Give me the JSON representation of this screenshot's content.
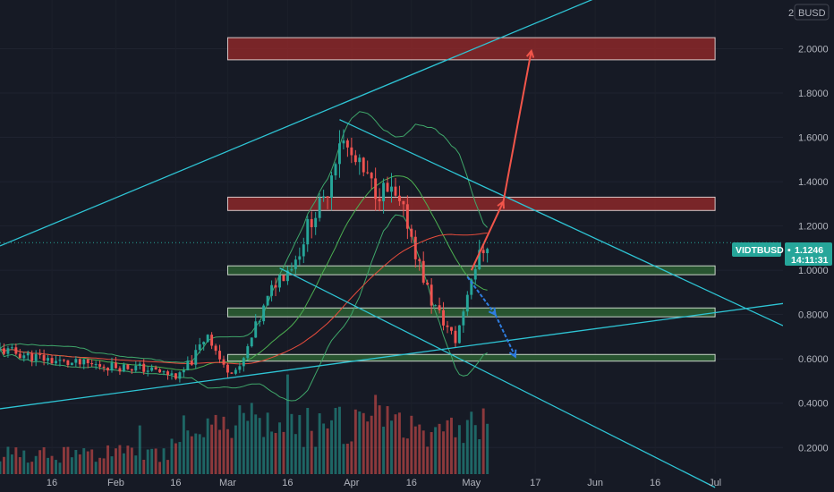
{
  "header": {
    "scale_mode": "2",
    "currency": "BUSD"
  },
  "price_label": {
    "symbol": "VIDTBUSD",
    "price": "1.1246",
    "countdown": "14:11:31"
  },
  "colors": {
    "background": "#161a25",
    "up": "#26a69a",
    "down": "#ef5350",
    "trendline": "#2ec4d4",
    "resistance_zone": "#a02a2a",
    "support_zone": "#2f6b34",
    "arrow_up": "#f2554a",
    "arrow_down": "#2f7de0",
    "bollinger": "#3fa66a",
    "ma_red": "#e74c3c",
    "ma_green": "#4caf50"
  },
  "chart_data": {
    "type": "candlestick",
    "symbol": "VIDTBUSD",
    "price_axis": {
      "ticks": [
        "2.0000",
        "1.8000",
        "1.6000",
        "1.4000",
        "1.2000",
        "1.0000",
        "0.8000",
        "0.6000",
        "0.4000",
        "0.2000"
      ],
      "range": [
        0.08,
        2.22
      ]
    },
    "time_axis": {
      "ticks": [
        "16",
        "Feb",
        "16",
        "Mar",
        "16",
        "Apr",
        "16",
        "May",
        "17",
        "Jun",
        "16",
        "Jul"
      ],
      "range": [
        "2022-01-03",
        "2022-07-18"
      ]
    },
    "last_price": 1.1246,
    "price_range": {
      "low": 0.47,
      "high": 1.69,
      "last_close": 1.1246
    },
    "drawings": {
      "resistance_zones": [
        {
          "from": "2022-03-01",
          "to": "2022-07-01",
          "low": 1.95,
          "high": 2.05
        },
        {
          "from": "2022-03-01",
          "to": "2022-07-01",
          "low": 1.27,
          "high": 1.33
        }
      ],
      "support_zones": [
        {
          "from": "2022-03-01",
          "to": "2022-07-01",
          "low": 0.98,
          "high": 1.02
        },
        {
          "from": "2022-03-01",
          "to": "2022-07-01",
          "low": 0.79,
          "high": 0.83
        },
        {
          "from": "2022-03-01",
          "to": "2022-07-01",
          "low": 0.59,
          "high": 0.62
        }
      ],
      "trendlines": [
        {
          "name": "upper-channel-line",
          "from": [
            "2022-01-03",
            1.11
          ],
          "to": [
            "2022-07-18",
            2.58
          ]
        },
        {
          "name": "lower-support-line",
          "from": [
            "2022-01-03",
            0.375
          ],
          "to": [
            "2022-07-18",
            0.85
          ]
        },
        {
          "name": "descending-resistance-line",
          "from": [
            "2022-03-29",
            1.68
          ],
          "to": [
            "2022-07-18",
            0.75
          ]
        },
        {
          "name": "descending-support-line",
          "from": [
            "2022-03-14",
            1.01
          ],
          "to": [
            "2022-07-01",
            0.02
          ]
        }
      ],
      "arrows": [
        {
          "name": "bullish-arrow",
          "points": [
            [
              "2022-05-01",
              1.0
            ],
            [
              "2022-05-09",
              1.31
            ],
            [
              "2022-05-16",
              1.99
            ]
          ]
        },
        {
          "name": "bearish-arrow",
          "points": [
            [
              "2022-04-30",
              0.97
            ],
            [
              "2022-05-07",
              0.8
            ],
            [
              "2022-05-12",
              0.61
            ]
          ]
        }
      ]
    }
  }
}
